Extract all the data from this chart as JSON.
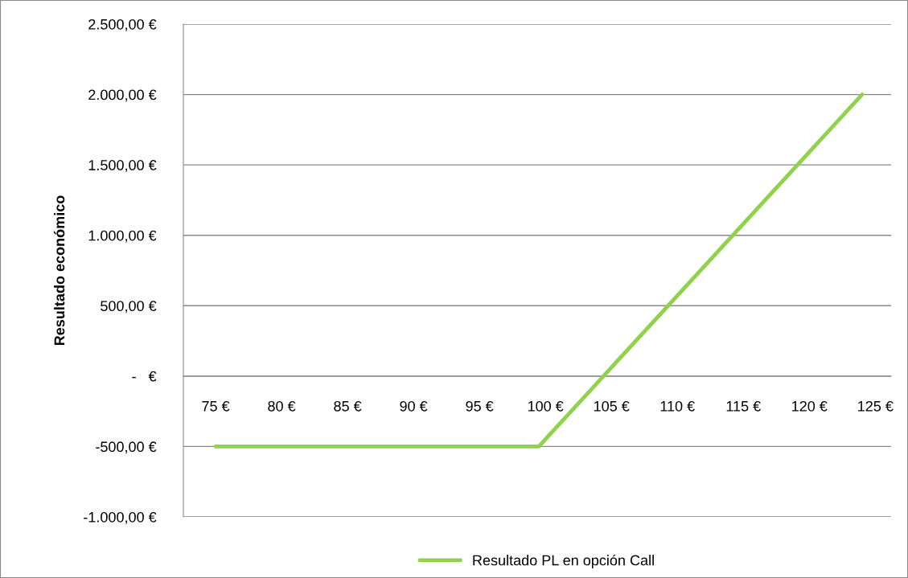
{
  "chart_data": {
    "type": "line",
    "ylabel": "Resultado económico",
    "x": [
      75,
      99.5,
      124
    ],
    "series": [
      {
        "name": "Resultado PL en opción Call",
        "color": "#92d050",
        "values": [
          -500,
          -500,
          2000
        ]
      }
    ],
    "xlim": [
      72.56,
      126.2
    ],
    "xticks": [
      {
        "value": 75,
        "label": "75 €"
      },
      {
        "value": 80,
        "label": "80 €"
      },
      {
        "value": 85,
        "label": "85 €"
      },
      {
        "value": 90,
        "label": "90 €"
      },
      {
        "value": 95,
        "label": "95 €"
      },
      {
        "value": 100,
        "label": "100 €"
      },
      {
        "value": 105,
        "label": "105 €"
      },
      {
        "value": 110,
        "label": "110 €"
      },
      {
        "value": 115,
        "label": "115 €"
      },
      {
        "value": 120,
        "label": "120 €"
      },
      {
        "value": 125,
        "label": "125 €"
      }
    ],
    "ylim": [
      -1000,
      2500
    ],
    "yticks": [
      {
        "value": -1000,
        "label": "-1.000,00 €"
      },
      {
        "value": -500,
        "label": "-500,00 €"
      },
      {
        "value": 0,
        "label": "-   €"
      },
      {
        "value": 500,
        "label": "500,00 €"
      },
      {
        "value": 1000,
        "label": "1.000,00 €"
      },
      {
        "value": 1500,
        "label": "1.500,00 €"
      },
      {
        "value": 2000,
        "label": "2.000,00 €"
      },
      {
        "value": 2500,
        "label": "2.500,00 €"
      }
    ],
    "grid": "y",
    "legend": "bottom",
    "marker": "none",
    "line_style": "solid"
  }
}
